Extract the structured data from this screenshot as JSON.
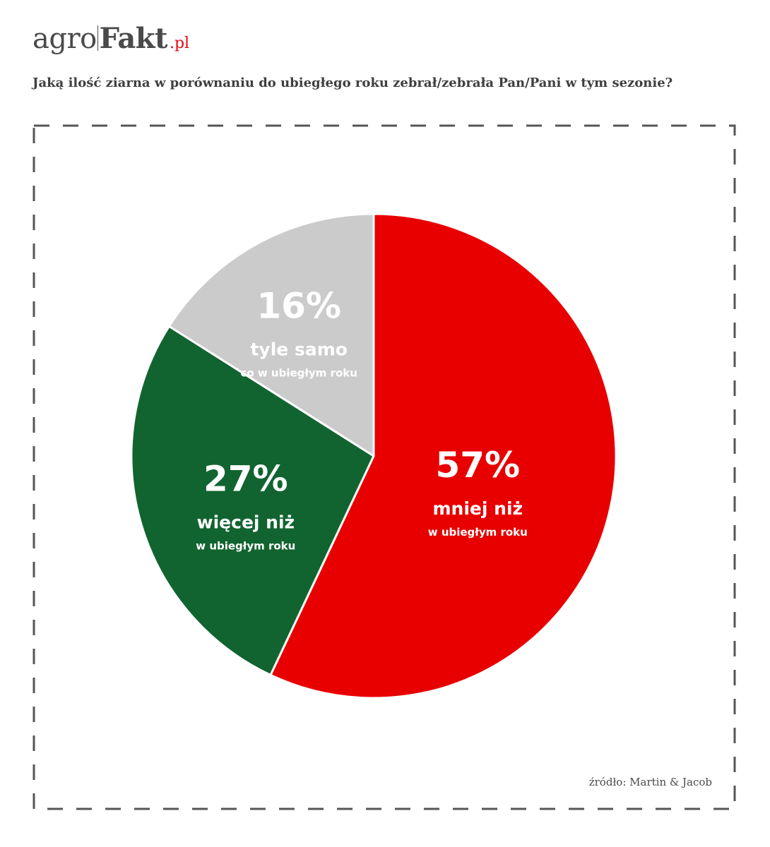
{
  "logo": {
    "part1": "agro",
    "part2": "Fakt",
    "part3": ".pl",
    "accent": "#e30613"
  },
  "question": "Jaką ilość ziarna w porównaniu do ubiegłego roku zebrał/zebrała Pan/Pani w tym sezonie?",
  "source": "źródło: Martin & Jacob",
  "chart_data": {
    "type": "pie",
    "title": "",
    "slices": [
      {
        "value": 57,
        "label_pct": "57%",
        "label_main": "mniej niż",
        "label_sub": "w ubiegłym roku",
        "color": "#e80000"
      },
      {
        "value": 27,
        "label_pct": "27%",
        "label_main": "więcej niż",
        "label_sub": "w ubiegłym roku",
        "color": "#116430"
      },
      {
        "value": 16,
        "label_pct": "16%",
        "label_main": "tyle samo",
        "label_sub": "co w ubiegłym roku",
        "color": "#cbcbcb"
      }
    ],
    "start": "12 o'clock",
    "direction": "clockwise",
    "legend": "none",
    "labels": "inside slices"
  }
}
